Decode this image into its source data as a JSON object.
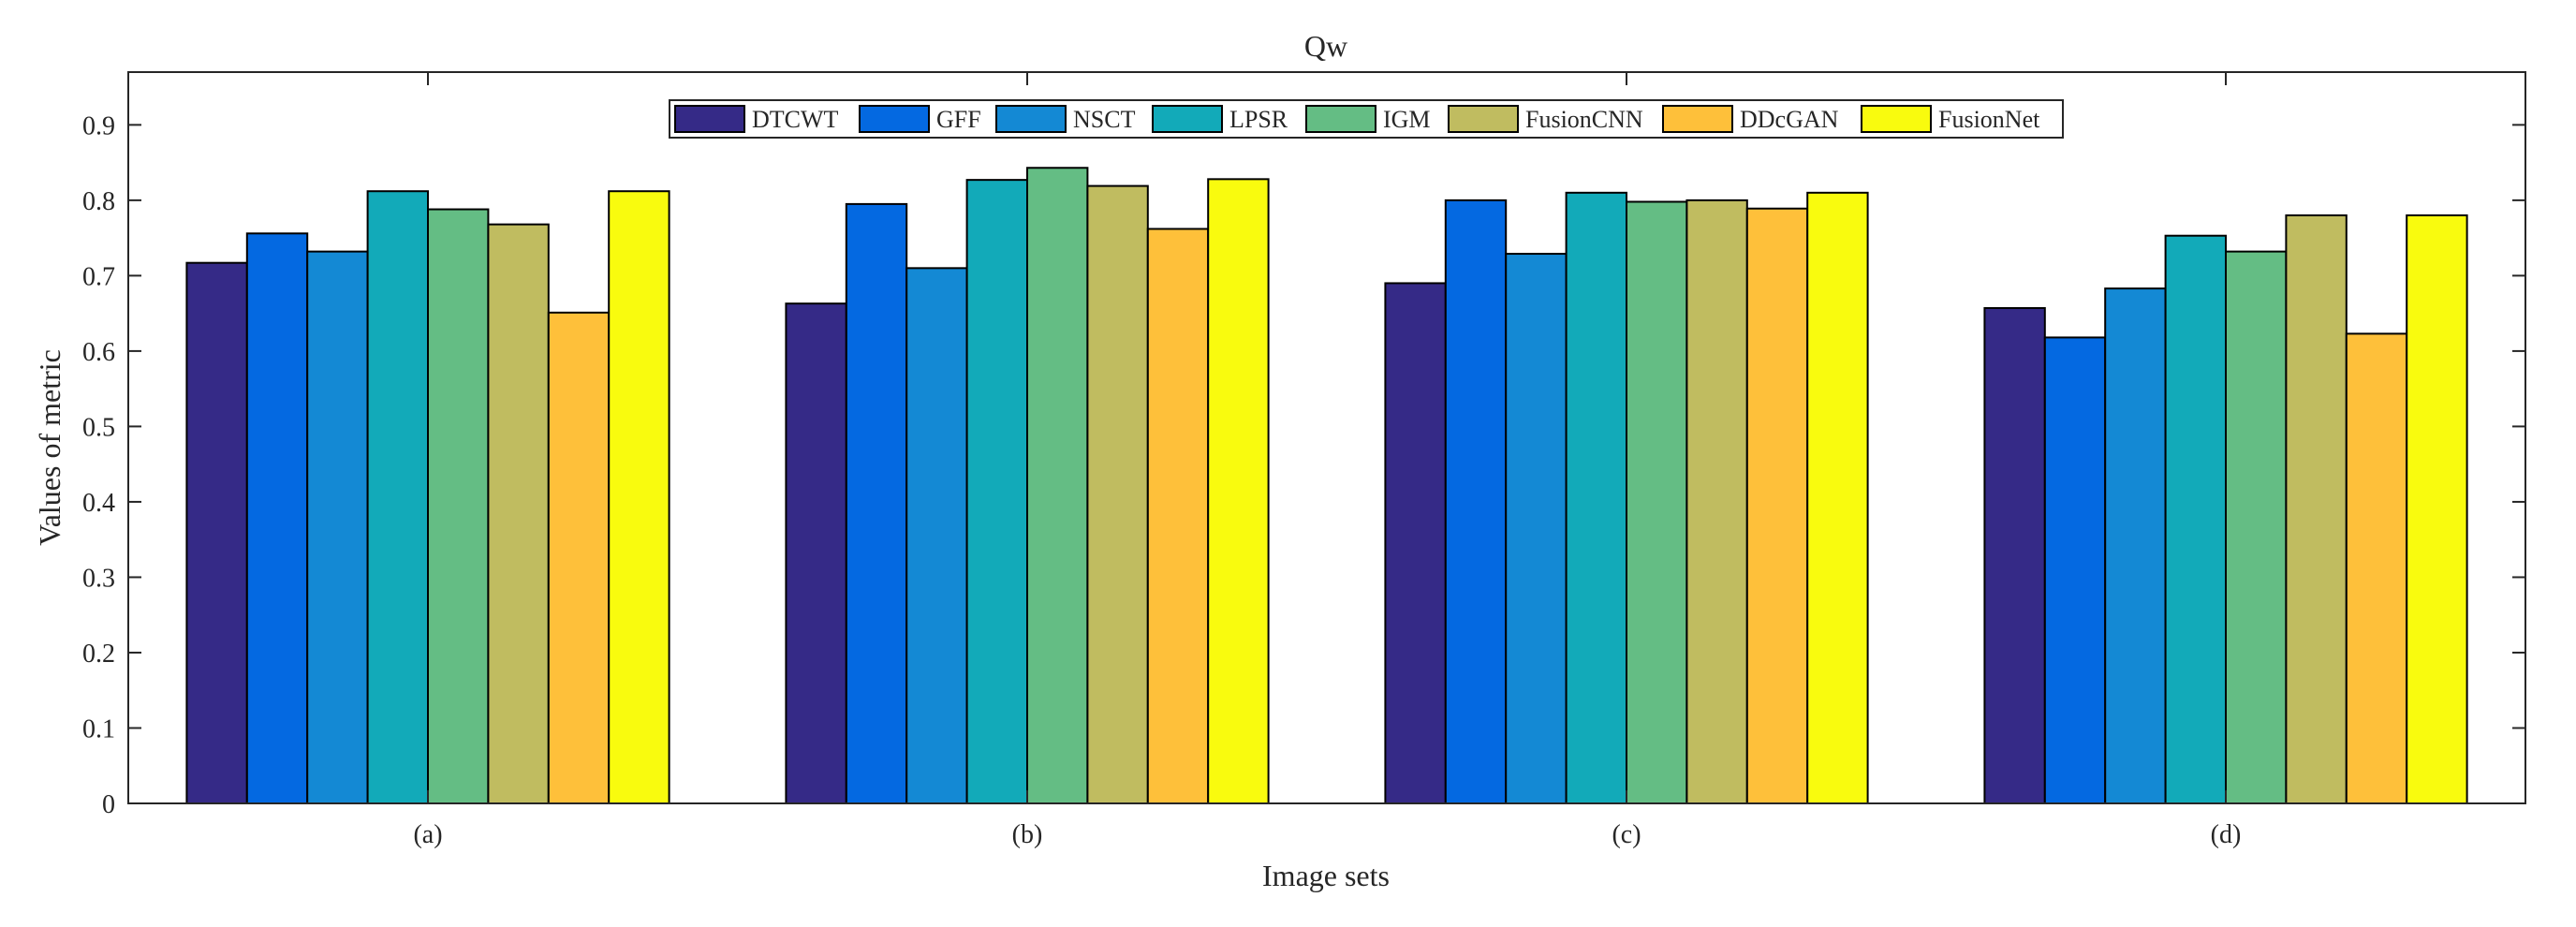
{
  "chart_data": {
    "type": "bar",
    "title": "Qw",
    "xlabel": "Image sets",
    "ylabel": "Values of metric",
    "categories": [
      "(a)",
      "(b)",
      "(c)",
      "(d)"
    ],
    "ylim": [
      0,
      0.97
    ],
    "yticks": [
      0,
      0.1,
      0.2,
      0.3,
      0.4,
      0.5,
      0.6,
      0.7,
      0.8,
      0.9
    ],
    "ytick_labels": [
      "0",
      "0.1",
      "0.2",
      "0.3",
      "0.4",
      "0.5",
      "0.6",
      "0.7",
      "0.8",
      "0.9"
    ],
    "grid": false,
    "legend_position": "top-center",
    "legend_orientation": "horizontal",
    "series": [
      {
        "name": "DTCWT",
        "color": "#352a87",
        "values": [
          0.717,
          0.663,
          0.69,
          0.657
        ]
      },
      {
        "name": "GFF",
        "color": "#0469e1",
        "values": [
          0.756,
          0.795,
          0.8,
          0.618
        ]
      },
      {
        "name": "NSCT",
        "color": "#1489d4",
        "values": [
          0.732,
          0.71,
          0.729,
          0.683
        ]
      },
      {
        "name": "LPSR",
        "color": "#12aab9",
        "values": [
          0.812,
          0.827,
          0.81,
          0.753
        ]
      },
      {
        "name": "IGM",
        "color": "#64bd84",
        "values": [
          0.788,
          0.843,
          0.798,
          0.732
        ]
      },
      {
        "name": "FusionCNN",
        "color": "#c0bc60",
        "values": [
          0.768,
          0.819,
          0.8,
          0.78
        ]
      },
      {
        "name": "DDcGAN",
        "color": "#fec03a",
        "values": [
          0.651,
          0.762,
          0.789,
          0.623
        ]
      },
      {
        "name": "FusionNet",
        "color": "#f9fb0e",
        "values": [
          0.812,
          0.828,
          0.81,
          0.78
        ]
      }
    ]
  }
}
